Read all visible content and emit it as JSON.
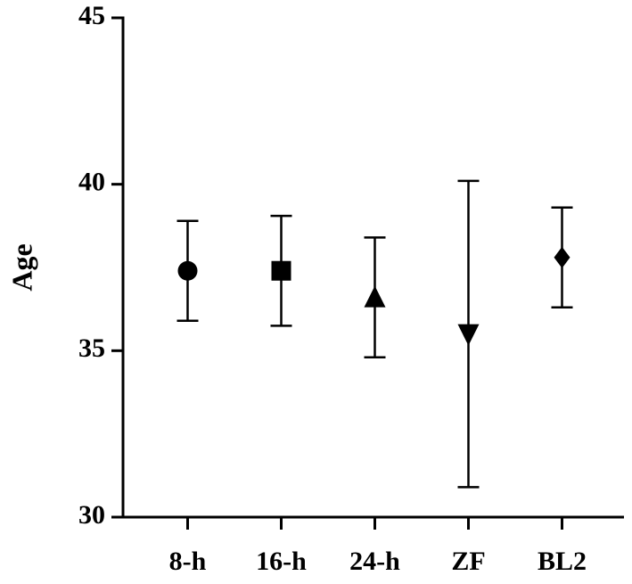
{
  "chart_data": {
    "type": "errorbar",
    "y_label": "Age",
    "categories": [
      "8-h",
      "16-h",
      "24-h",
      "ZF",
      "BL2"
    ],
    "values": [
      37.4,
      37.4,
      36.6,
      35.5,
      37.8
    ],
    "errors": [
      1.5,
      1.65,
      1.8,
      4.6,
      1.5
    ],
    "markers": [
      "circle",
      "square",
      "triangle-up",
      "triangle-down",
      "diamond"
    ],
    "color": "#000000",
    "ylim": [
      30,
      45
    ],
    "yticks": [
      30,
      35,
      40,
      45
    ]
  }
}
